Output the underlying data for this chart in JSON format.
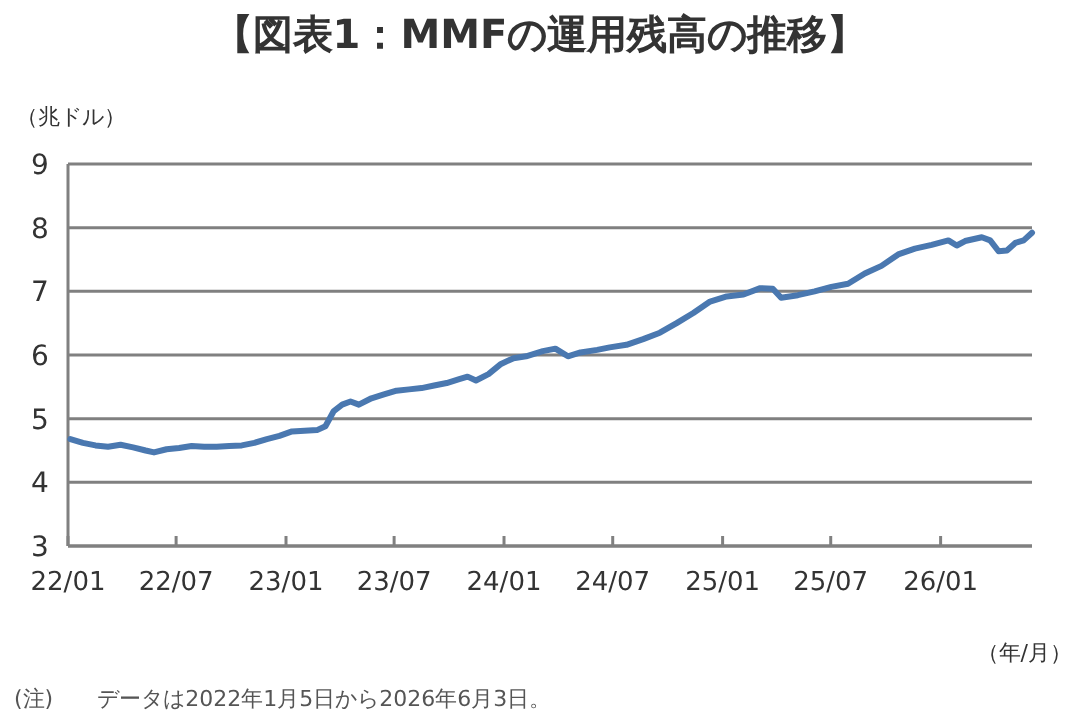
{
  "chart_data": {
    "type": "line",
    "title": "【図表1：MMFの運用残高の推移】",
    "ylabel": "（兆ドル）",
    "xlabel": "（年/月）",
    "annotations": [
      "(注)　　データは2022年1月5日から2026年6月3日。"
    ],
    "xlim": [
      "2022-01-01",
      "2026-06-03"
    ],
    "ylim": [
      3,
      9
    ],
    "yticks": [
      3,
      4,
      5,
      6,
      7,
      8,
      9
    ],
    "xticks": [
      {
        "value": "2022-01-01",
        "label": "22/01"
      },
      {
        "value": "2022-07-01",
        "label": "22/07"
      },
      {
        "value": "2023-01-01",
        "label": "23/01"
      },
      {
        "value": "2023-07-01",
        "label": "23/07"
      },
      {
        "value": "2024-01-01",
        "label": "24/01"
      },
      {
        "value": "2024-07-01",
        "label": "24/07"
      },
      {
        "value": "2025-01-01",
        "label": "25/01"
      },
      {
        "value": "2025-07-01",
        "label": "25/07"
      },
      {
        "value": "2026-01-01",
        "label": "26/01"
      }
    ],
    "grid": "y",
    "marker": "none",
    "line_style": "solid",
    "x": [
      "2022-01-05",
      "2022-01-26",
      "2022-02-16",
      "2022-03-09",
      "2022-03-30",
      "2022-04-20",
      "2022-05-11",
      "2022-05-25",
      "2022-06-15",
      "2022-07-06",
      "2022-07-27",
      "2022-08-17",
      "2022-09-07",
      "2022-09-28",
      "2022-10-19",
      "2022-11-09",
      "2022-11-30",
      "2022-12-21",
      "2023-01-11",
      "2023-02-01",
      "2023-02-22",
      "2023-03-08",
      "2023-03-22",
      "2023-04-05",
      "2023-04-19",
      "2023-05-03",
      "2023-05-24",
      "2023-06-14",
      "2023-07-05",
      "2023-07-26",
      "2023-08-16",
      "2023-09-06",
      "2023-09-27",
      "2023-10-18",
      "2023-11-01",
      "2023-11-15",
      "2023-12-06",
      "2023-12-27",
      "2024-01-17",
      "2024-02-07",
      "2024-03-06",
      "2024-03-27",
      "2024-04-17",
      "2024-05-08",
      "2024-06-05",
      "2024-06-26",
      "2024-07-24",
      "2024-08-21",
      "2024-09-18",
      "2024-10-16",
      "2024-11-13",
      "2024-12-11",
      "2025-01-08",
      "2025-02-05",
      "2025-03-05",
      "2025-03-26",
      "2025-04-09",
      "2025-05-07",
      "2025-06-04",
      "2025-07-02",
      "2025-07-30",
      "2025-08-27",
      "2025-09-24",
      "2025-10-22",
      "2025-11-19",
      "2025-12-17",
      "2026-01-14",
      "2026-01-28",
      "2026-02-11",
      "2026-03-11",
      "2026-03-25",
      "2026-04-08",
      "2026-04-22",
      "2026-05-06",
      "2026-05-20",
      "2026-06-03"
    ],
    "series": [
      {
        "color": "#4a78b0",
        "values": [
          4.68,
          4.62,
          4.58,
          4.56,
          4.59,
          4.55,
          4.5,
          4.47,
          4.52,
          4.54,
          4.57,
          4.56,
          4.56,
          4.57,
          4.58,
          4.62,
          4.68,
          4.73,
          4.8,
          4.81,
          4.82,
          4.88,
          5.12,
          5.22,
          5.27,
          5.22,
          5.32,
          5.38,
          5.44,
          5.46,
          5.48,
          5.52,
          5.56,
          5.62,
          5.66,
          5.6,
          5.7,
          5.86,
          5.95,
          5.98,
          6.06,
          6.1,
          5.98,
          6.04,
          6.08,
          6.12,
          6.16,
          6.25,
          6.35,
          6.5,
          6.66,
          6.84,
          6.92,
          6.95,
          7.05,
          7.04,
          6.9,
          6.94,
          7.0,
          7.07,
          7.12,
          7.28,
          7.4,
          7.58,
          7.67,
          7.73,
          7.8,
          7.72,
          7.79,
          7.85,
          7.8,
          7.63,
          7.64,
          7.76,
          7.8,
          7.92
        ]
      }
    ]
  }
}
